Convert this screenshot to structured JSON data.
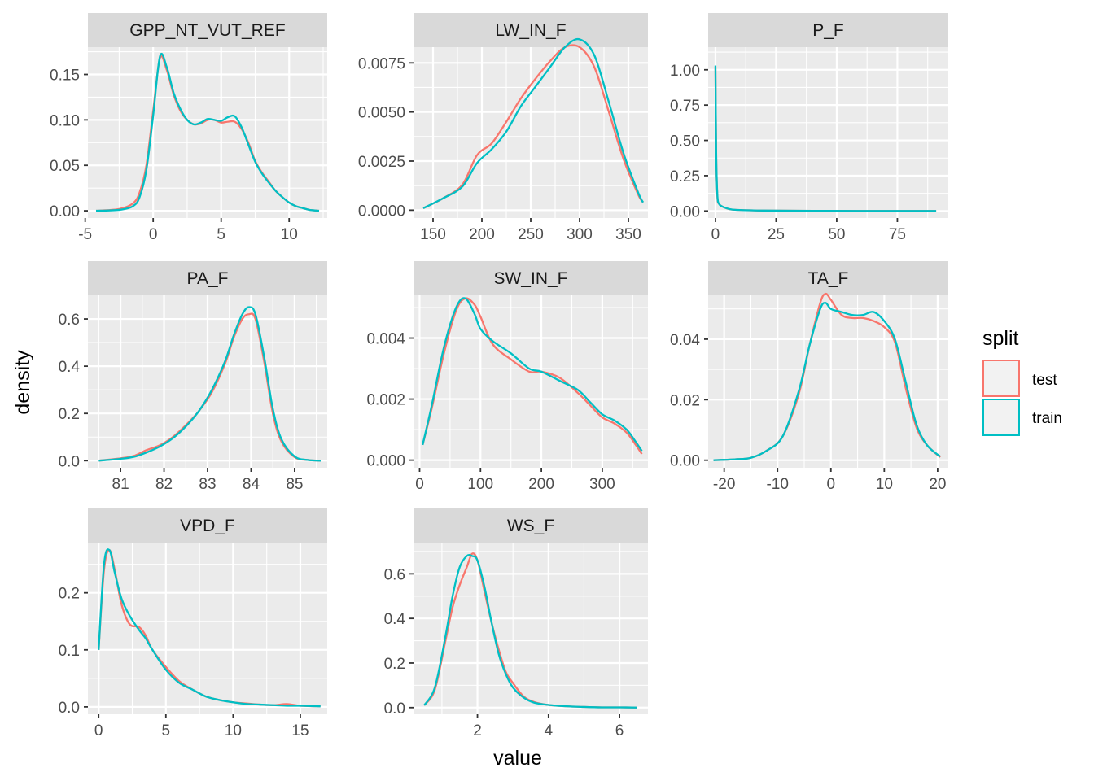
{
  "chart_data": {
    "type": "line",
    "kind": "faceted density plot",
    "xlabel": "value",
    "ylabel": "density",
    "legend": {
      "title": "split",
      "position": "right",
      "entries": [
        {
          "label": "test",
          "color": "#F8766D"
        },
        {
          "label": "train",
          "color": "#00BFC4"
        }
      ]
    },
    "colors": {
      "panel_bg": "#EBEBEB",
      "strip_bg": "#D9D9D9",
      "grid": "#FFFFFF",
      "test": "#F8766D",
      "train": "#00BFC4"
    },
    "grid": true,
    "panels": [
      {
        "title": "GPP_NT_VUT_REF",
        "xlim": [
          -4.8,
          12.8
        ],
        "ylim": [
          -0.008,
          0.18
        ],
        "xticks": [
          -5,
          0,
          5,
          10
        ],
        "xtick_labels": [
          "-5",
          "0",
          "5",
          "10"
        ],
        "yticks": [
          0,
          0.05,
          0.1,
          0.15
        ],
        "ytick_labels": [
          "0.00",
          "0.05",
          "0.10",
          "0.15"
        ],
        "series": [
          {
            "name": "test",
            "x": [
              -4.2,
              -2.5,
              -1.5,
              -1,
              -0.5,
              0,
              0.5,
              1,
              1.5,
              2,
              2.5,
              3,
              3.5,
              4,
              4.5,
              5,
              5.5,
              6,
              6.5,
              7,
              7.5,
              8,
              8.5,
              9,
              9.5,
              10,
              10.5,
              11,
              11.5,
              12.2
            ],
            "y": [
              0,
              0.002,
              0.008,
              0.02,
              0.05,
              0.11,
              0.168,
              0.155,
              0.128,
              0.11,
              0.1,
              0.095,
              0.096,
              0.1,
              0.1,
              0.097,
              0.098,
              0.098,
              0.09,
              0.075,
              0.055,
              0.042,
              0.032,
              0.022,
              0.015,
              0.009,
              0.005,
              0.003,
              0.001,
              0
            ]
          },
          {
            "name": "train",
            "x": [
              -4.2,
              -2.5,
              -1.5,
              -1,
              -0.5,
              0,
              0.5,
              1,
              1.5,
              2,
              2.5,
              3,
              3.5,
              4,
              4.5,
              5,
              5.5,
              6,
              6.5,
              7,
              7.5,
              8,
              8.5,
              9,
              9.5,
              10,
              10.5,
              11,
              11.5,
              12.2
            ],
            "y": [
              0,
              0.001,
              0.005,
              0.015,
              0.045,
              0.105,
              0.17,
              0.158,
              0.13,
              0.112,
              0.1,
              0.095,
              0.097,
              0.101,
              0.1,
              0.099,
              0.103,
              0.104,
              0.092,
              0.073,
              0.054,
              0.041,
              0.031,
              0.022,
              0.015,
              0.009,
              0.005,
              0.003,
              0.001,
              0
            ]
          }
        ]
      },
      {
        "title": "LW_IN_F",
        "xlim": [
          130,
          370
        ],
        "ylim": [
          -0.0004,
          0.0083
        ],
        "xticks": [
          150,
          200,
          250,
          300,
          350
        ],
        "xtick_labels": [
          "150",
          "200",
          "250",
          "300",
          "350"
        ],
        "yticks": [
          0,
          0.0025,
          0.005,
          0.0075
        ],
        "ytick_labels": [
          "0.0000",
          "0.0025",
          "0.0050",
          "0.0075"
        ],
        "series": [
          {
            "name": "test",
            "x": [
              140,
              160,
              180,
              195,
              210,
              225,
              240,
              255,
              270,
              285,
              300,
              315,
              330,
              345,
              360,
              365
            ],
            "y": [
              0.0001,
              0.0006,
              0.0013,
              0.0028,
              0.0034,
              0.0045,
              0.0057,
              0.0067,
              0.0076,
              0.0083,
              0.0083,
              0.0073,
              0.005,
              0.0026,
              0.0008,
              0.0004
            ]
          },
          {
            "name": "train",
            "x": [
              140,
              160,
              180,
              195,
              210,
              225,
              240,
              255,
              270,
              285,
              300,
              315,
              330,
              345,
              360,
              365
            ],
            "y": [
              0.0001,
              0.0006,
              0.0012,
              0.0024,
              0.0031,
              0.004,
              0.0053,
              0.0063,
              0.0073,
              0.0083,
              0.0087,
              0.0079,
              0.0055,
              0.0029,
              0.0009,
              0.0004
            ]
          }
        ]
      },
      {
        "title": "P_F",
        "xlim": [
          -3,
          96
        ],
        "ylim": [
          -0.05,
          1.16
        ],
        "xticks": [
          0,
          25,
          50,
          75
        ],
        "xtick_labels": [
          "0",
          "25",
          "50",
          "75"
        ],
        "yticks": [
          0,
          0.25,
          0.5,
          0.75,
          1
        ],
        "ytick_labels": [
          "0.00",
          "0.25",
          "0.50",
          "0.75",
          "1.00"
        ],
        "series": [
          {
            "name": "test",
            "x": [
              0,
              0.3,
              0.8,
              1.5,
              3,
              6,
              10,
              20,
              40,
              60,
              91
            ],
            "y": [
              1.02,
              0.4,
              0.1,
              0.05,
              0.03,
              0.012,
              0.007,
              0.003,
              0.001,
              0.0005,
              0
            ]
          },
          {
            "name": "train",
            "x": [
              0,
              0.3,
              0.8,
              1.5,
              3,
              6,
              10,
              20,
              40,
              60,
              91
            ],
            "y": [
              1.03,
              0.42,
              0.11,
              0.05,
              0.03,
              0.013,
              0.007,
              0.003,
              0.001,
              0.0005,
              0
            ]
          }
        ]
      },
      {
        "title": "PA_F",
        "xlim": [
          80.25,
          85.75
        ],
        "ylim": [
          -0.03,
          0.7
        ],
        "xticks": [
          81,
          82,
          83,
          84,
          85
        ],
        "xtick_labels": [
          "81",
          "82",
          "83",
          "84",
          "85"
        ],
        "yticks": [
          0,
          0.2,
          0.4,
          0.6
        ],
        "ytick_labels": [
          "0.0",
          "0.2",
          "0.4",
          "0.6"
        ],
        "series": [
          {
            "name": "test",
            "x": [
              80.5,
              81,
              81.3,
              81.6,
              81.9,
              82.2,
              82.5,
              82.8,
              83.1,
              83.4,
              83.6,
              83.8,
              83.95,
              84.1,
              84.3,
              84.5,
              84.7,
              85,
              85.3,
              85.6
            ],
            "y": [
              0,
              0.01,
              0.02,
              0.045,
              0.065,
              0.1,
              0.15,
              0.21,
              0.29,
              0.41,
              0.52,
              0.6,
              0.62,
              0.6,
              0.42,
              0.2,
              0.08,
              0.015,
              0.003,
              0
            ]
          },
          {
            "name": "train",
            "x": [
              80.5,
              81,
              81.3,
              81.6,
              81.9,
              82.2,
              82.5,
              82.8,
              83.1,
              83.4,
              83.6,
              83.8,
              83.95,
              84.1,
              84.3,
              84.5,
              84.7,
              85,
              85.3,
              85.6
            ],
            "y": [
              0,
              0.008,
              0.016,
              0.035,
              0.06,
              0.095,
              0.145,
              0.21,
              0.3,
              0.42,
              0.53,
              0.62,
              0.65,
              0.62,
              0.44,
              0.22,
              0.09,
              0.018,
              0.003,
              0
            ]
          }
        ]
      },
      {
        "title": "SW_IN_F",
        "xlim": [
          -10,
          375
        ],
        "ylim": [
          -0.00025,
          0.0054
        ],
        "xticks": [
          0,
          100,
          200,
          300
        ],
        "xtick_labels": [
          "0",
          "100",
          "200",
          "300"
        ],
        "yticks": [
          0,
          0.002,
          0.004
        ],
        "ytick_labels": [
          "0.000",
          "0.002",
          "0.004"
        ],
        "series": [
          {
            "name": "test",
            "x": [
              5,
              20,
              40,
              60,
              75,
              90,
              100,
              120,
              150,
              180,
              200,
              230,
              260,
              280,
              300,
              320,
              340,
              355,
              365
            ],
            "y": [
              0.0005,
              0.0017,
              0.0035,
              0.0049,
              0.0053,
              0.0051,
              0.0047,
              0.0038,
              0.0033,
              0.0029,
              0.0029,
              0.0027,
              0.0022,
              0.0018,
              0.0014,
              0.0012,
              0.0009,
              0.0005,
              0.0002
            ]
          },
          {
            "name": "train",
            "x": [
              5,
              20,
              40,
              60,
              75,
              90,
              100,
              120,
              150,
              180,
              200,
              230,
              260,
              280,
              300,
              320,
              340,
              355,
              365
            ],
            "y": [
              0.0005,
              0.0018,
              0.0037,
              0.005,
              0.0053,
              0.0048,
              0.0043,
              0.0039,
              0.0035,
              0.003,
              0.0029,
              0.0026,
              0.0023,
              0.0019,
              0.0015,
              0.0013,
              0.001,
              0.0006,
              0.0003
            ]
          }
        ]
      },
      {
        "title": "TA_F",
        "xlim": [
          -23,
          22
        ],
        "ylim": [
          -0.0025,
          0.0545
        ],
        "xticks": [
          -20,
          -10,
          0,
          10,
          20
        ],
        "xtick_labels": [
          "-20",
          "-10",
          "0",
          "10",
          "20"
        ],
        "yticks": [
          0,
          0.02,
          0.04
        ],
        "ytick_labels": [
          "0.00",
          "0.02",
          "0.04"
        ],
        "series": [
          {
            "name": "test",
            "x": [
              -22,
              -18,
              -15,
              -12,
              -9,
              -6,
              -4,
              -2,
              -1,
              0,
              2,
              4,
              6,
              8,
              10,
              12,
              14,
              16,
              18,
              20.5
            ],
            "y": [
              0,
              0.0003,
              0.0008,
              0.0032,
              0.008,
              0.022,
              0.038,
              0.052,
              0.055,
              0.053,
              0.048,
              0.047,
              0.047,
              0.046,
              0.044,
              0.039,
              0.024,
              0.011,
              0.005,
              0.001
            ]
          },
          {
            "name": "train",
            "x": [
              -22,
              -18,
              -15,
              -12,
              -9,
              -6,
              -4,
              -2,
              -1,
              0,
              2,
              4,
              6,
              8,
              10,
              12,
              14,
              16,
              18,
              20.5
            ],
            "y": [
              0,
              0.0003,
              0.0008,
              0.0032,
              0.008,
              0.023,
              0.038,
              0.05,
              0.052,
              0.05,
              0.049,
              0.048,
              0.048,
              0.049,
              0.046,
              0.04,
              0.026,
              0.012,
              0.005,
              0.0012
            ]
          }
        ]
      },
      {
        "title": "VPD_F",
        "xlim": [
          -0.8,
          17
        ],
        "ylim": [
          -0.013,
          0.288
        ],
        "xticks": [
          0,
          5,
          10,
          15
        ],
        "xtick_labels": [
          "0",
          "5",
          "10",
          "15"
        ],
        "yticks": [
          0,
          0.1,
          0.2
        ],
        "ytick_labels": [
          "0.0",
          "0.1",
          "0.2"
        ],
        "series": [
          {
            "name": "test",
            "x": [
              0,
              0.4,
              0.8,
              1.2,
              1.7,
              2.3,
              3,
              3.5,
              4,
              5,
              6,
              7,
              8,
              9,
              10,
              11,
              12,
              13,
              14,
              15,
              16.5
            ],
            "y": [
              0.1,
              0.24,
              0.275,
              0.24,
              0.18,
              0.145,
              0.14,
              0.125,
              0.1,
              0.07,
              0.045,
              0.03,
              0.018,
              0.012,
              0.008,
              0.006,
              0.004,
              0.003,
              0.005,
              0.002,
              0.001
            ]
          },
          {
            "name": "train",
            "x": [
              0,
              0.4,
              0.8,
              1.2,
              1.7,
              2.3,
              3,
              3.5,
              4,
              5,
              6,
              7,
              8,
              9,
              10,
              11,
              12,
              13,
              14,
              15,
              16.5
            ],
            "y": [
              0.1,
              0.25,
              0.275,
              0.235,
              0.19,
              0.16,
              0.135,
              0.12,
              0.1,
              0.065,
              0.042,
              0.03,
              0.018,
              0.012,
              0.008,
              0.005,
              0.004,
              0.003,
              0.002,
              0.002,
              0.001
            ]
          }
        ]
      },
      {
        "title": "WS_F",
        "xlim": [
          0.2,
          6.8
        ],
        "ylim": [
          -0.03,
          0.74
        ],
        "xticks": [
          2,
          4,
          6
        ],
        "xtick_labels": [
          "2",
          "4",
          "6"
        ],
        "yticks": [
          0,
          0.2,
          0.4,
          0.6
        ],
        "ytick_labels": [
          "0.0",
          "0.2",
          "0.4",
          "0.6"
        ],
        "series": [
          {
            "name": "test",
            "x": [
              0.5,
              0.8,
              1.1,
              1.3,
              1.5,
              1.7,
              1.85,
              2,
              2.2,
              2.4,
              2.6,
              2.8,
              3,
              3.3,
              3.6,
              4,
              4.5,
              5,
              5.5,
              6,
              6.5
            ],
            "y": [
              0.01,
              0.08,
              0.3,
              0.45,
              0.55,
              0.63,
              0.69,
              0.66,
              0.52,
              0.38,
              0.26,
              0.16,
              0.11,
              0.05,
              0.025,
              0.012,
              0.006,
              0.003,
              0.001,
              0.001,
              0
            ]
          },
          {
            "name": "train",
            "x": [
              0.5,
              0.8,
              1.1,
              1.3,
              1.5,
              1.7,
              1.85,
              2,
              2.2,
              2.4,
              2.6,
              2.8,
              3,
              3.3,
              3.6,
              4,
              4.5,
              5,
              5.5,
              6,
              6.5
            ],
            "y": [
              0.01,
              0.09,
              0.32,
              0.5,
              0.63,
              0.68,
              0.68,
              0.66,
              0.54,
              0.38,
              0.24,
              0.15,
              0.09,
              0.045,
              0.022,
              0.012,
              0.006,
              0.003,
              0.001,
              0.001,
              0
            ]
          }
        ]
      }
    ]
  }
}
